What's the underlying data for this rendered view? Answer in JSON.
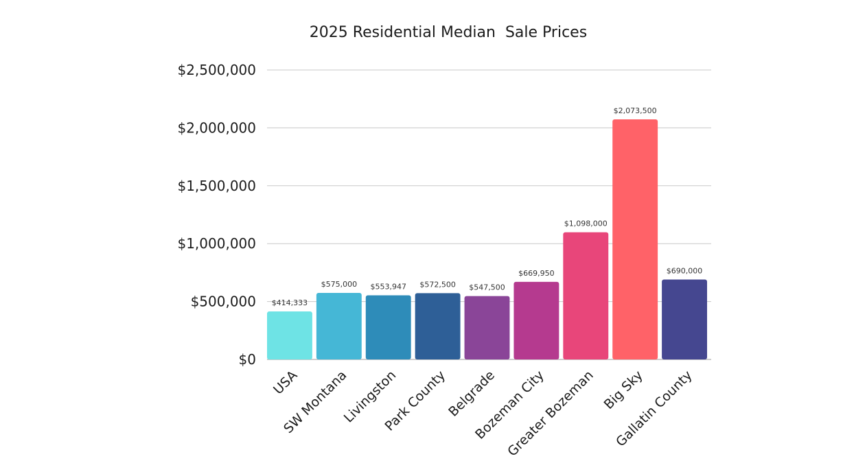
{
  "chart_data": {
    "type": "bar",
    "title": "2025 Residential Median  Sale Prices",
    "xlabel": "",
    "ylabel": "",
    "ylim": [
      0,
      2500000
    ],
    "yticks": [
      0,
      500000,
      1000000,
      1500000,
      2000000,
      2500000
    ],
    "ytick_labels": [
      "$0",
      "$500,000",
      "$1,000,000",
      "$1,500,000",
      "$2,000,000",
      "$2,500,000"
    ],
    "grid": true,
    "categories": [
      "USA",
      "SW Montana",
      "Livingston",
      "Park County",
      "Belgrade",
      "Bozeman City",
      "Greater Bozeman",
      "Big Sky",
      "Gallatin County"
    ],
    "values": [
      414333,
      575000,
      553947,
      572500,
      547500,
      669950,
      1098000,
      2073500,
      690000
    ],
    "data_labels": [
      "$414,333",
      "$575,000",
      "$553,947",
      "$572,500",
      "$547,500",
      "$669,950",
      "$1,098,000",
      "$2,073,500",
      "$690,000"
    ],
    "colors": [
      "#6ee3e5",
      "#45b7d6",
      "#2e8cb9",
      "#2e5f97",
      "#8a4598",
      "#b53a8f",
      "#e8467a",
      "#ff6268",
      "#454790"
    ]
  }
}
